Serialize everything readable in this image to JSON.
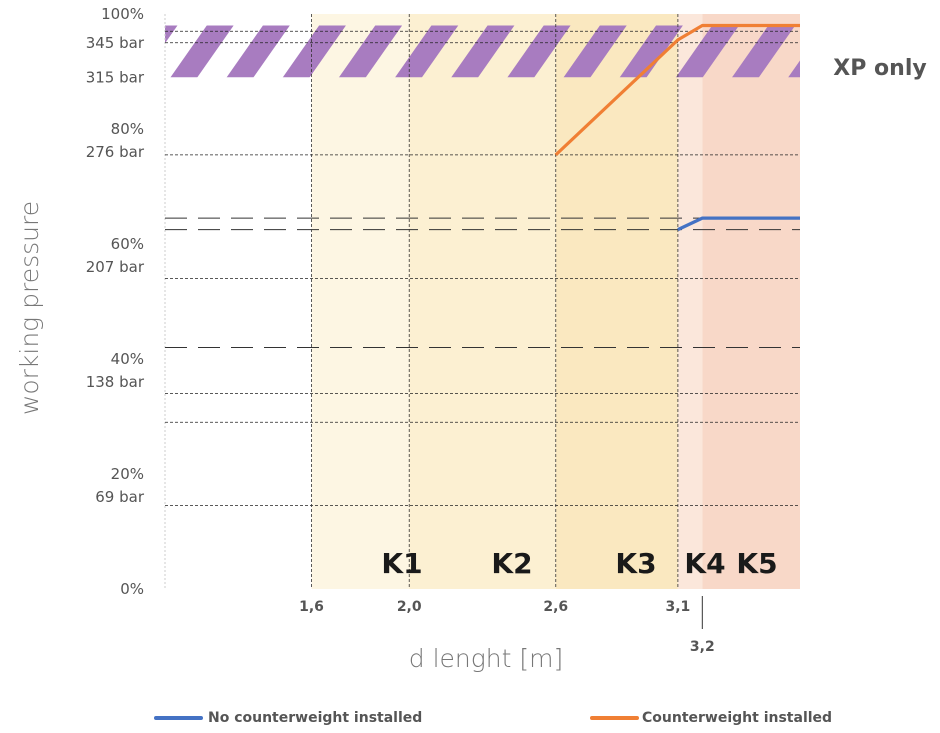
{
  "chart_data": {
    "type": "line",
    "title": "",
    "xlabel": "d lenght [m]",
    "ylabel": "working pressure",
    "ylim": [
      0,
      100
    ],
    "y_ticks": [
      {
        "v": 100,
        "label": "100%"
      },
      {
        "v": 95,
        "label": "345 bar"
      },
      {
        "v": 89,
        "label": "315 bar"
      },
      {
        "v": 80,
        "label": "80%"
      },
      {
        "v": 76,
        "label": "276 bar"
      },
      {
        "v": 60,
        "label": "60%"
      },
      {
        "v": 56,
        "label": "207 bar"
      },
      {
        "v": 40,
        "label": "40%"
      },
      {
        "v": 36,
        "label": "138 bar"
      },
      {
        "v": 20,
        "label": "20%"
      },
      {
        "v": 16,
        "label": "69 bar"
      },
      {
        "v": 0,
        "label": "0%"
      }
    ],
    "x_ticks": [
      {
        "v": 1.6,
        "label": "1,6"
      },
      {
        "v": 2.0,
        "label": "2,0"
      },
      {
        "v": 2.6,
        "label": "2,6"
      },
      {
        "v": 3.1,
        "label": "3,1"
      },
      {
        "v": 3.2,
        "label": "3,2"
      }
    ],
    "zones": [
      {
        "name": "K1",
        "x0": 1.6,
        "x1": 2.0,
        "color": "#fdf6e3"
      },
      {
        "name": "K2",
        "x0": 2.0,
        "x1": 2.6,
        "color": "#fcf0d2"
      },
      {
        "name": "K3",
        "x0": 2.6,
        "x1": 3.1,
        "color": "#fae8c0"
      },
      {
        "name": "K4",
        "x0": 3.1,
        "x1": 3.2,
        "color": "#fbe7db"
      },
      {
        "name": "K5",
        "x0": 3.2,
        "x1": 3.6,
        "color": "#f8d8c8"
      }
    ],
    "xp_band": {
      "label": "XP only",
      "y0": 89,
      "y1": 98,
      "color": "#a87cc0"
    },
    "dotted_lines": [
      97,
      95,
      75.5,
      54,
      34,
      29,
      14.5
    ],
    "dashed_lines": [
      64.5,
      62.5,
      42
    ],
    "series": [
      {
        "name": "No counterweight installed",
        "color": "#4472c4",
        "x": [
          3.1,
          3.2,
          3.6
        ],
        "y": [
          62.5,
          64.5,
          64.5
        ]
      },
      {
        "name": "Counterweight installed",
        "color": "#f07f34",
        "x": [
          2.6,
          3.1,
          3.2,
          3.6
        ],
        "y": [
          75.5,
          95.5,
          98,
          98
        ]
      }
    ]
  }
}
